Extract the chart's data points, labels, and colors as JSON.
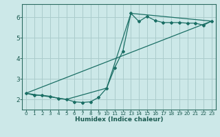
{
  "xlabel": "Humidex (Indice chaleur)",
  "bg_color": "#cce8e8",
  "grid_color": "#aacccc",
  "line_color": "#1a6e64",
  "xlim": [
    -0.5,
    23.5
  ],
  "ylim": [
    1.5,
    6.65
  ],
  "yticks": [
    2,
    3,
    4,
    5,
    6
  ],
  "xticks": [
    0,
    1,
    2,
    3,
    4,
    5,
    6,
    7,
    8,
    9,
    10,
    11,
    12,
    13,
    14,
    15,
    16,
    17,
    18,
    19,
    20,
    21,
    22,
    23
  ],
  "line1_x": [
    0,
    1,
    2,
    3,
    4,
    5,
    6,
    7,
    8,
    9,
    10,
    11,
    12,
    13,
    14,
    15,
    16,
    17,
    18,
    19,
    20,
    21,
    22,
    23
  ],
  "line1_y": [
    2.3,
    2.2,
    2.2,
    2.15,
    2.05,
    2.0,
    1.88,
    1.85,
    1.88,
    2.1,
    2.55,
    3.55,
    4.35,
    6.2,
    5.8,
    6.05,
    5.85,
    5.75,
    5.75,
    5.75,
    5.72,
    5.72,
    5.62,
    5.82
  ],
  "line2_x": [
    0,
    5,
    10,
    13,
    23
  ],
  "line2_y": [
    2.3,
    2.0,
    2.55,
    6.2,
    5.82
  ],
  "line3_x": [
    0,
    23
  ],
  "line3_y": [
    2.3,
    5.82
  ],
  "xlabel_fontsize": 6.5,
  "xtick_fontsize": 5.2,
  "ytick_fontsize": 6.5
}
